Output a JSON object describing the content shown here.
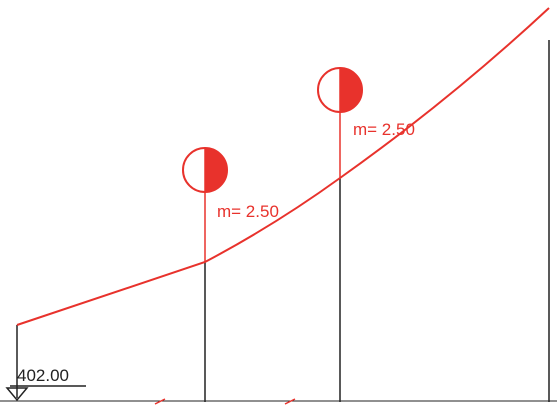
{
  "annotations": [
    {
      "label": "m= 2.50"
    },
    {
      "label": "m= 2.50"
    }
  ],
  "level": "402.00"
}
